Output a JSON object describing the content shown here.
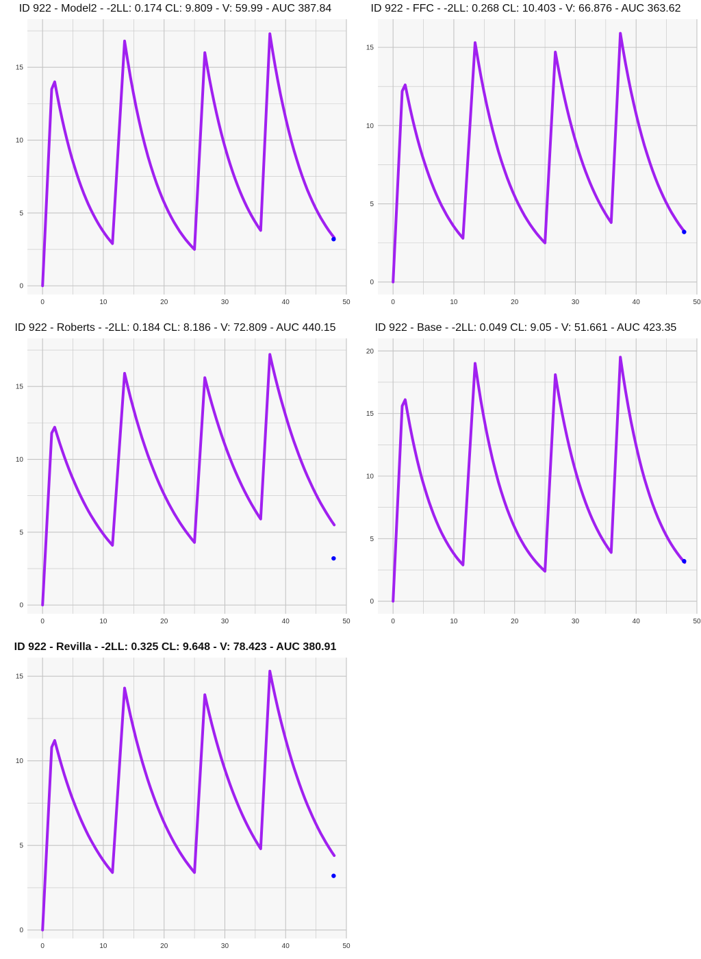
{
  "colors": {
    "line": "#a020f0",
    "point": "#0000ff",
    "panel_bg": "#f7f7f7",
    "grid": "#c4c4c4"
  },
  "chart_data": [
    {
      "type": "line",
      "title": "ID 922 - Model2 - -2LL: 0.174 CL: 9.809 - V: 59.99 - AUC 387.84",
      "title_bold": false,
      "xlim": [
        -2.5,
        50
      ],
      "ylim": [
        -0.6,
        18.3
      ],
      "xticks": [
        0,
        10,
        20,
        30,
        40,
        50
      ],
      "yticks": [
        0,
        5,
        10,
        15
      ],
      "grid": true,
      "line": [
        [
          0,
          0
        ],
        [
          1.5,
          13.5
        ],
        [
          2,
          14
        ],
        [
          11.5,
          2.9
        ],
        [
          13.5,
          16.8
        ],
        [
          25,
          2.5
        ],
        [
          26.7,
          16
        ],
        [
          35.9,
          3.8
        ],
        [
          37.4,
          17.3
        ],
        [
          48,
          3.3
        ]
      ],
      "observed": [
        [
          47.9,
          3.2
        ]
      ]
    },
    {
      "type": "line",
      "title": "ID 922 - FFC - -2LL: 0.268 CL: 10.403 - V: 66.876 - AUC 363.62",
      "title_bold": false,
      "xlim": [
        -2.5,
        50
      ],
      "ylim": [
        -0.8,
        16.8
      ],
      "xticks": [
        0,
        10,
        20,
        30,
        40,
        50
      ],
      "yticks": [
        0,
        5,
        10,
        15
      ],
      "grid": true,
      "line": [
        [
          0,
          0
        ],
        [
          1.5,
          12.2
        ],
        [
          2,
          12.6
        ],
        [
          11.5,
          2.8
        ],
        [
          13.5,
          15.3
        ],
        [
          25,
          2.5
        ],
        [
          26.7,
          14.7
        ],
        [
          35.9,
          3.8
        ],
        [
          37.4,
          15.9
        ],
        [
          48,
          3.2
        ]
      ],
      "observed": [
        [
          47.9,
          3.2
        ]
      ]
    },
    {
      "type": "line",
      "title": "ID 922 - Roberts - -2LL: 0.184 CL: 8.186 - V: 72.809 - AUC 440.15",
      "title_bold": false,
      "xlim": [
        -2.5,
        50
      ],
      "ylim": [
        -0.6,
        18.3
      ],
      "xticks": [
        0,
        10,
        20,
        30,
        40,
        50
      ],
      "yticks": [
        0,
        5,
        10,
        15
      ],
      "grid": true,
      "line": [
        [
          0,
          0
        ],
        [
          1.5,
          11.8
        ],
        [
          2,
          12.2
        ],
        [
          11.5,
          4.1
        ],
        [
          13.5,
          15.9
        ],
        [
          25,
          4.3
        ],
        [
          26.7,
          15.6
        ],
        [
          35.9,
          5.9
        ],
        [
          37.4,
          17.2
        ],
        [
          48,
          5.5
        ]
      ],
      "observed": [
        [
          47.9,
          3.2
        ]
      ]
    },
    {
      "type": "line",
      "title": "ID 922 - Base - -2LL: 0.049 CL: 9.05 - V: 51.661 - AUC 423.35",
      "title_bold": false,
      "xlim": [
        -2.5,
        50
      ],
      "ylim": [
        -1,
        21
      ],
      "xticks": [
        0,
        10,
        20,
        30,
        40,
        50
      ],
      "yticks": [
        0,
        5,
        10,
        15,
        20
      ],
      "grid": true,
      "line": [
        [
          0,
          0
        ],
        [
          1.5,
          15.6
        ],
        [
          2,
          16.1
        ],
        [
          11.5,
          2.9
        ],
        [
          13.5,
          19
        ],
        [
          25,
          2.4
        ],
        [
          26.7,
          18.1
        ],
        [
          35.9,
          3.9
        ],
        [
          37.4,
          19.5
        ],
        [
          48,
          3.1
        ]
      ],
      "observed": [
        [
          47.9,
          3.2
        ]
      ]
    },
    {
      "type": "line",
      "title": "ID 922 - Revilla - -2LL: 0.325 CL: 9.648 - V: 78.423 - AUC 380.91",
      "title_bold": true,
      "xlim": [
        -2.5,
        50
      ],
      "ylim": [
        -0.5,
        16.1
      ],
      "xticks": [
        0,
        10,
        20,
        30,
        40,
        50
      ],
      "yticks": [
        0,
        5,
        10,
        15
      ],
      "grid": true,
      "line": [
        [
          0,
          0
        ],
        [
          1.5,
          10.8
        ],
        [
          2,
          11.2
        ],
        [
          11.5,
          3.4
        ],
        [
          13.5,
          14.3
        ],
        [
          25,
          3.4
        ],
        [
          26.7,
          13.9
        ],
        [
          35.9,
          4.8
        ],
        [
          37.4,
          15.3
        ],
        [
          48,
          4.4
        ]
      ],
      "observed": [
        [
          47.9,
          3.2
        ]
      ]
    }
  ]
}
